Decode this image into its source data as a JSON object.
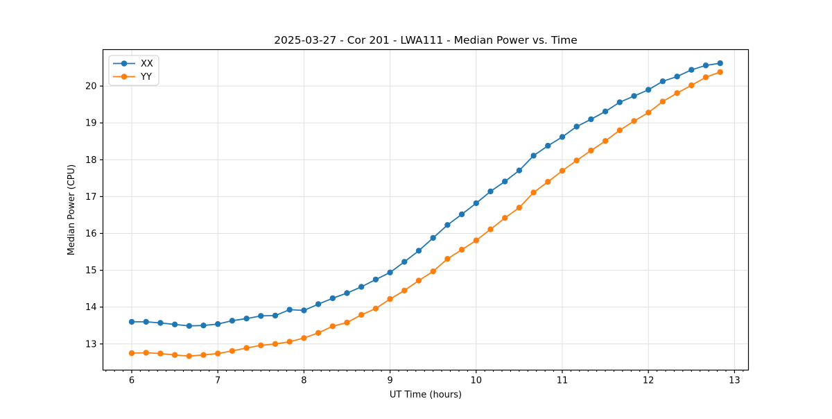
{
  "chart_data": {
    "type": "line",
    "title": "2025-03-27 - Cor 201 - LWA111 - Median Power vs. Time",
    "xlabel": "UT Time (hours)",
    "ylabel": "Median Power (CPU)",
    "xlim": [
      5.666,
      13.162
    ],
    "ylim": [
      12.29,
      20.99
    ],
    "x_ticks": [
      6,
      7,
      8,
      9,
      10,
      11,
      12,
      13
    ],
    "y_ticks": [
      13,
      14,
      15,
      16,
      17,
      18,
      19,
      20
    ],
    "x_minor_tick_step": 0.1,
    "grid": true,
    "legend_position": "upper left",
    "x": [
      6.0,
      6.1667,
      6.3333,
      6.5,
      6.6667,
      6.8333,
      7.0,
      7.1667,
      7.3333,
      7.5,
      7.6667,
      7.8333,
      8.0,
      8.1667,
      8.3333,
      8.5,
      8.6667,
      8.8333,
      9.0,
      9.1667,
      9.3333,
      9.5,
      9.6667,
      9.8333,
      10.0,
      10.1667,
      10.3333,
      10.5,
      10.6667,
      10.8333,
      11.0,
      11.1667,
      11.3333,
      11.5,
      11.6667,
      11.8333,
      12.0,
      12.1667,
      12.3333,
      12.5,
      12.6667,
      12.8333
    ],
    "series": [
      {
        "name": "XX",
        "color": "#1f77b4",
        "values": [
          13.6,
          13.6,
          13.57,
          13.53,
          13.49,
          13.5,
          13.54,
          13.63,
          13.69,
          13.76,
          13.77,
          13.93,
          13.91,
          14.08,
          14.24,
          14.38,
          14.55,
          14.75,
          14.94,
          15.23,
          15.53,
          15.88,
          16.23,
          16.52,
          16.82,
          17.14,
          17.41,
          17.71,
          18.11,
          18.38,
          18.62,
          18.9,
          19.1,
          19.31,
          19.56,
          19.73,
          19.9,
          20.13,
          20.26,
          20.44,
          20.56,
          20.62
        ]
      },
      {
        "name": "YY",
        "color": "#ff7f0e",
        "values": [
          12.75,
          12.76,
          12.74,
          12.7,
          12.67,
          12.7,
          12.74,
          12.81,
          12.89,
          12.96,
          13.0,
          13.06,
          13.16,
          13.3,
          13.48,
          13.58,
          13.79,
          13.96,
          14.22,
          14.45,
          14.72,
          14.97,
          15.31,
          15.56,
          15.81,
          16.11,
          16.42,
          16.7,
          17.11,
          17.4,
          17.7,
          17.98,
          18.25,
          18.51,
          18.8,
          19.05,
          19.28,
          19.58,
          19.81,
          20.02,
          20.24,
          20.38
        ]
      }
    ],
    "style": {
      "grid_color": "#e0e0e0",
      "spine_color": "#000000",
      "legend_border_color": "#cccccc",
      "legend_bg_color": "#ffffff"
    }
  }
}
